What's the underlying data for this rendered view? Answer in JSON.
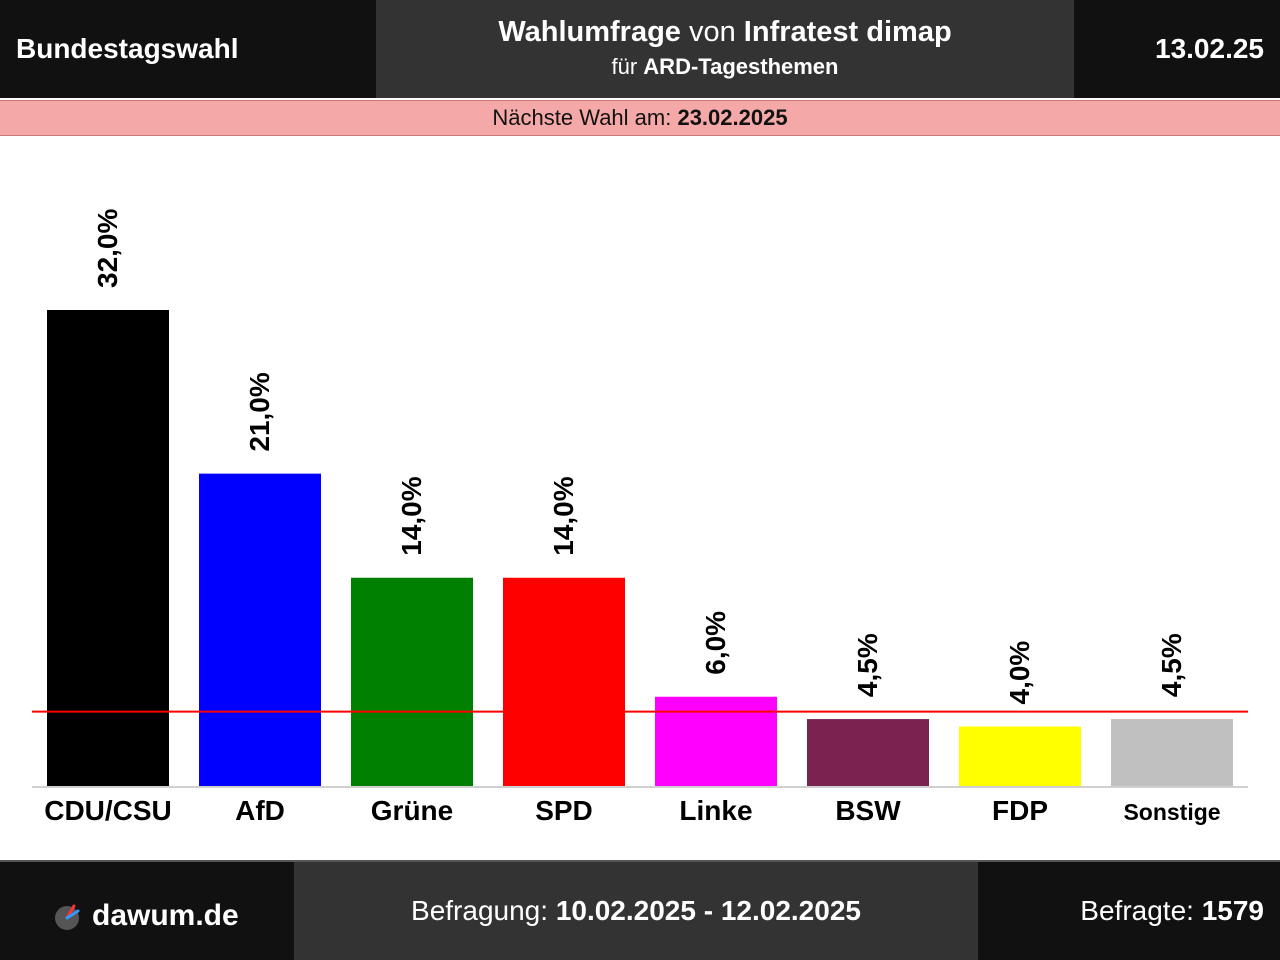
{
  "header": {
    "left_title": "Bundestagswahl",
    "title_part1": "Wahlumfrage",
    "title_part2": " von ",
    "title_part3": "Infratest dimap",
    "subtitle_prefix": "für ",
    "subtitle_client": "ARD-Tagesthemen",
    "date": "13.02.25"
  },
  "next_election": {
    "label": "Nächste Wahl am: ",
    "date": "23.02.2025"
  },
  "chart_data": {
    "type": "bar",
    "categories": [
      "CDU/CSU",
      "AfD",
      "Grüne",
      "SPD",
      "Linke",
      "BSW",
      "FDP",
      "Sonstige"
    ],
    "values": [
      32.0,
      21.0,
      14.0,
      14.0,
      6.0,
      4.5,
      4.0,
      4.5
    ],
    "value_labels": [
      "32,0%",
      "21,0%",
      "14,0%",
      "14,0%",
      "6,0%",
      "4,5%",
      "4,0%",
      "4,5%"
    ],
    "colors": [
      "#000000",
      "#0000ff",
      "#008000",
      "#ff0000",
      "#ff00ff",
      "#7a2350",
      "#ffff00",
      "#c0c0c0"
    ],
    "threshold": 5.0,
    "threshold_color": "#ff0000",
    "ylim": [
      0,
      32
    ]
  },
  "footer": {
    "site": "dawum.de",
    "period_label": "Befragung: ",
    "period": "10.02.2025 - 12.02.2025",
    "sample_label": "Befragte: ",
    "sample": "1579"
  }
}
